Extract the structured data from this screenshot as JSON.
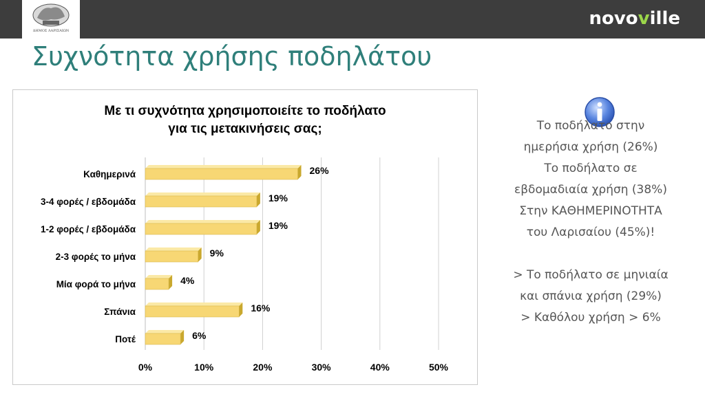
{
  "header": {
    "logo_caption": "ΔΗΜΟΣ ΛΑΡΙΣΑΙΩΝ",
    "brand_name_prefix": "novo",
    "brand_name_accent": "v",
    "brand_name_suffix": "ille"
  },
  "slide": {
    "title": "Συχνότητα χρήσης ποδηλάτου"
  },
  "notes": {
    "lines": [
      "Το ποδήλατο στην",
      "ημερήσια χρήση (26%)",
      "Το ποδήλατο σε",
      "εβδομαδιαία χρήση (38%)",
      "Στην ΚΑΘΗΜΕΡΙΝΟΤΗΤΑ",
      "του Λαρισαίου (45%)!",
      "",
      "> Το ποδήλατο σε μηνιαία",
      "και σπάνια χρήση (29%)",
      "> Καθόλου χρήση > 6%"
    ],
    "icon": "info-icon"
  },
  "chart_data": {
    "type": "bar",
    "orientation": "horizontal",
    "title_lines": [
      "Με τι συχνότητα χρησιμοποιείτε το ποδήλατο",
      "για τις μετακινήσεις σας;"
    ],
    "categories": [
      "Καθημερινά",
      "3-4 φορές / εβδομάδα",
      "1-2 φορές / εβδομάδα",
      "2-3 φορές το μήνα",
      "Μία φορά το μήνα",
      "Σπάνια",
      "Ποτέ"
    ],
    "values": [
      26,
      19,
      19,
      9,
      4,
      16,
      6
    ],
    "value_labels": [
      "26%",
      "19%",
      "19%",
      "9%",
      "4%",
      "16%",
      "6%"
    ],
    "xticks": [
      "0%",
      "10%",
      "20%",
      "30%",
      "40%",
      "50%"
    ],
    "xlim": [
      0,
      50
    ],
    "grid": true,
    "bar_color": "#f7d774",
    "bar_shade_color": "#c9a82e"
  }
}
